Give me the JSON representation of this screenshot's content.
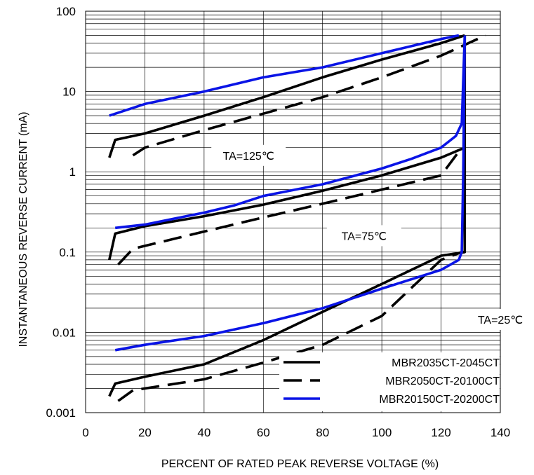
{
  "chart_data": {
    "type": "line",
    "title": "",
    "xlabel": "PERCENT OF RATED PEAK REVERSE VOLTAGE (%)",
    "ylabel": "INSTANTANEOUS REVERSE CURRENT (mA)",
    "xlim": [
      0,
      140
    ],
    "ylim": [
      0.001,
      100
    ],
    "yscale": "log",
    "grid": true,
    "x_ticks": [
      "0",
      "20",
      "40",
      "60",
      "80",
      "100",
      "120",
      "140"
    ],
    "y_ticks": [
      "0.001",
      "0.01",
      "0.1",
      "1",
      "10",
      "100"
    ],
    "legend_placement": "bottom-right",
    "colors": {
      "black": "#000000",
      "blue": "#0a14e6"
    },
    "series": [
      {
        "name": "MBR2035CT-2045CT",
        "legend_index": 0,
        "style": "solid",
        "color": "#000000",
        "x": [
          8,
          10,
          20,
          40,
          60,
          80,
          100,
          120,
          128,
          128,
          128,
          128
        ],
        "y": [
          0.0016,
          0.0023,
          0.0028,
          0.004,
          0.008,
          0.018,
          0.04,
          0.09,
          0.1,
          2,
          50,
          50
        ],
        "condition": "TA=25℃"
      },
      {
        "name": "MBR2035CT-2045CT",
        "legend_index": 0,
        "style": "solid",
        "color": "#000000",
        "x": [
          8,
          10,
          20,
          40,
          60,
          80,
          100,
          120,
          128
        ],
        "y": [
          0.08,
          0.17,
          0.21,
          0.28,
          0.39,
          0.58,
          0.9,
          1.5,
          2
        ],
        "condition": "TA=75℃"
      },
      {
        "name": "MBR2035CT-2045CT",
        "legend_index": 0,
        "style": "solid",
        "color": "#000000",
        "x": [
          8,
          10,
          20,
          40,
          60,
          80,
          100,
          120,
          128
        ],
        "y": [
          1.5,
          2.5,
          3,
          5,
          8.5,
          15,
          25,
          40,
          50
        ],
        "condition": "TA=125℃"
      },
      {
        "name": "MBR2050CT-20100CT",
        "legend_index": 1,
        "style": "dashed",
        "color": "#000000",
        "x": [
          11,
          16,
          40,
          60,
          80,
          100,
          120,
          127,
          128
        ],
        "y": [
          0.0014,
          0.0019,
          0.0026,
          0.0042,
          0.007,
          0.016,
          0.08,
          0.1,
          0.1
        ],
        "condition": "TA=25℃"
      },
      {
        "name": "MBR2050CT-20100CT",
        "legend_index": 1,
        "style": "dashed",
        "color": "#000000",
        "x": [
          11,
          16,
          40,
          60,
          80,
          100,
          120,
          127
        ],
        "y": [
          0.07,
          0.11,
          0.18,
          0.27,
          0.4,
          0.6,
          0.9,
          2
        ],
        "condition": "TA=75℃"
      },
      {
        "name": "MBR2050CT-20100CT",
        "legend_index": 1,
        "style": "dashed",
        "color": "#000000",
        "x": [
          16,
          20,
          40,
          60,
          80,
          100,
          120,
          135
        ],
        "y": [
          1.6,
          2,
          3.3,
          5.3,
          8.5,
          15,
          28,
          50
        ],
        "condition": "TA=125℃"
      },
      {
        "name": "MBR20150CT-20200CT",
        "legend_index": 2,
        "style": "solid",
        "color": "#0a14e6",
        "x": [
          10,
          20,
          40,
          60,
          80,
          100,
          120,
          126,
          127,
          127.5,
          128
        ],
        "y": [
          0.006,
          0.007,
          0.009,
          0.013,
          0.02,
          0.035,
          0.06,
          0.08,
          0.1,
          1,
          50
        ],
        "condition": "TA=25℃"
      },
      {
        "name": "MBR20150CT-20200CT",
        "legend_index": 2,
        "style": "solid",
        "color": "#0a14e6",
        "x": [
          10,
          20,
          40,
          50,
          60,
          80,
          100,
          110,
          120,
          125,
          127,
          128
        ],
        "y": [
          0.2,
          0.22,
          0.31,
          0.38,
          0.5,
          0.7,
          1.1,
          1.45,
          2,
          2.8,
          4,
          50
        ],
        "condition": "TA=75℃"
      },
      {
        "name": "MBR20150CT-20200CT",
        "legend_index": 2,
        "style": "solid",
        "color": "#0a14e6",
        "x": [
          8,
          20,
          40,
          60,
          80,
          100,
          120,
          126
        ],
        "y": [
          5,
          7,
          10,
          15,
          20,
          30,
          45,
          50
        ],
        "condition": "TA=125℃"
      }
    ],
    "legend": [
      {
        "name": "MBR2035CT-2045CT",
        "style": "solid",
        "color": "#000000"
      },
      {
        "name": "MBR2050CT-20100CT",
        "style": "dashed",
        "color": "#000000"
      },
      {
        "name": "MBR20150CT-20200CT",
        "style": "solid",
        "color": "#0a14e6"
      }
    ],
    "annotations": [
      {
        "text": "TA=125℃",
        "x": 55,
        "y": 1.6
      },
      {
        "text": "TA=75℃",
        "x": 94,
        "y": 0.16
      },
      {
        "text": "TA=25℃",
        "x": 140,
        "y": 0.0145
      }
    ]
  }
}
